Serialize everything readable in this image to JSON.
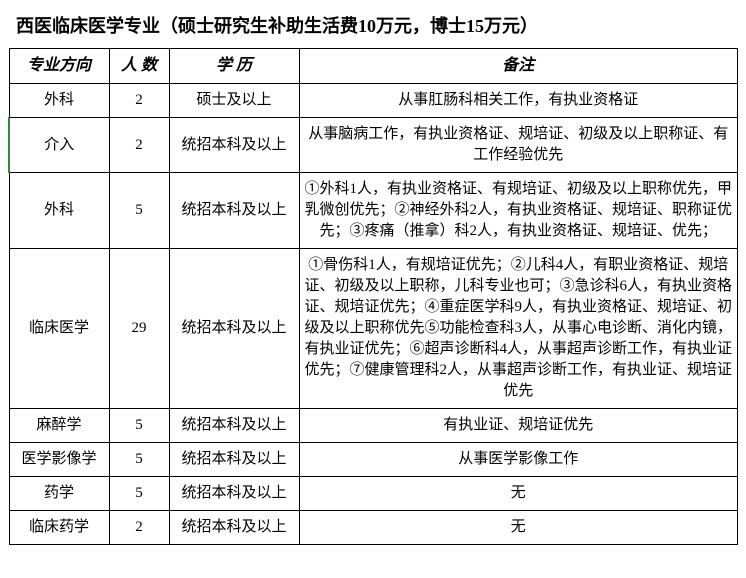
{
  "title": "西医临床医学专业（硕士研究生补助生活费10万元，博士15万元）",
  "headers": {
    "direction": "专业方向",
    "count": "人 数",
    "education": "学 历",
    "note": "备注"
  },
  "rows": [
    {
      "direction": "外科",
      "count": "2",
      "education": "硕士及以上",
      "note": "从事肛肠科相关工作，有执业资格证",
      "highlight": false
    },
    {
      "direction": "介入",
      "count": "2",
      "education": "统招本科及以上",
      "note": "从事脑病工作，有执业资格证、规培证、初级及以上职称证、有工作经验优先",
      "highlight": true
    },
    {
      "direction": "外科",
      "count": "5",
      "education": "统招本科及以上",
      "note": "①外科1人，有执业资格证、有规培证、初级及以上职称优先，甲乳微创优先；②神经外科2人，有执业资格证、规培证、职称证优先；③疼痛（推拿）科2人，有执业资格证、规培证、优先；",
      "highlight": false
    },
    {
      "direction": "临床医学",
      "count": "29",
      "education": "统招本科及以上",
      "note": "①骨伤科1人，有规培证优先；②儿科4人，有职业资格证、规培证、初级及以上职称，儿科专业也可；③急诊科6人，有执业资格证、规培证优先；④重症医学科9人，有执业资格证、规培证、初级及以上职称优先⑤功能检查科3人，从事心电诊断、消化内镜，有执业证优先；⑥超声诊断科4人，从事超声诊断工作，有执业证优先；⑦健康管理科2人，从事超声诊断工作，有执业证、规培证优先",
      "highlight": false
    },
    {
      "direction": "麻醉学",
      "count": "5",
      "education": "统招本科及以上",
      "note": "有执业证、规培证优先",
      "highlight": false
    },
    {
      "direction": "医学影像学",
      "count": "5",
      "education": "统招本科及以上",
      "note": "从事医学影像工作",
      "highlight": false
    },
    {
      "direction": "药学",
      "count": "5",
      "education": "统招本科及以上",
      "note": "无",
      "highlight": false
    },
    {
      "direction": "临床药学",
      "count": "2",
      "education": "统招本科及以上",
      "note": "无",
      "highlight": false
    }
  ]
}
